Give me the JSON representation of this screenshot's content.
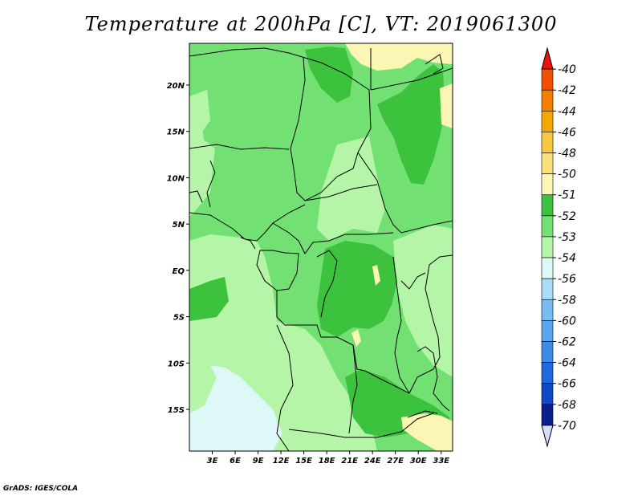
{
  "title": "Temperature at 200hPa [C], VT: 2019061300",
  "credit": "GrADS: IGES/COLA",
  "map": {
    "lat_labels": [
      "20N",
      "15N",
      "10N",
      "5N",
      "EQ",
      "5S",
      "10S",
      "15S"
    ],
    "lat_values": [
      20,
      15,
      10,
      5,
      0,
      -5,
      -10,
      -15
    ],
    "lon_labels": [
      "3E",
      "6E",
      "9E",
      "12E",
      "15E",
      "18E",
      "21E",
      "24E",
      "27E",
      "30E",
      "33E"
    ],
    "lon_values": [
      3,
      6,
      9,
      12,
      15,
      18,
      21,
      24,
      27,
      30,
      33
    ],
    "lon_range": [
      0,
      34.5
    ],
    "lat_range": [
      -19.5,
      24.5
    ]
  },
  "colorbar": {
    "labels": [
      "-40",
      "-42",
      "-44",
      "-46",
      "-48",
      "-50",
      "-51",
      "-52",
      "-53",
      "-54",
      "-56",
      "-58",
      "-60",
      "-62",
      "-64",
      "-66",
      "-68",
      "-70"
    ],
    "colors": [
      "#ee1111",
      "#f25000",
      "#f57e00",
      "#f7a800",
      "#f8c840",
      "#fae078",
      "#fcf6b4",
      "#3cc23c",
      "#73e073",
      "#b4f5a8",
      "#def8f8",
      "#a8dcf8",
      "#78bcf2",
      "#5aa4ee",
      "#3e8ae8",
      "#2068e0",
      "#1048c8",
      "#0a1e8c",
      "#0a0a5a",
      "#d8d8f8"
    ]
  },
  "field_colors": {
    "c51": "#fcf6b4",
    "c52": "#3cc23c",
    "c53": "#73e073",
    "c54": "#b4f5a8",
    "c56": "#def8f8"
  }
}
